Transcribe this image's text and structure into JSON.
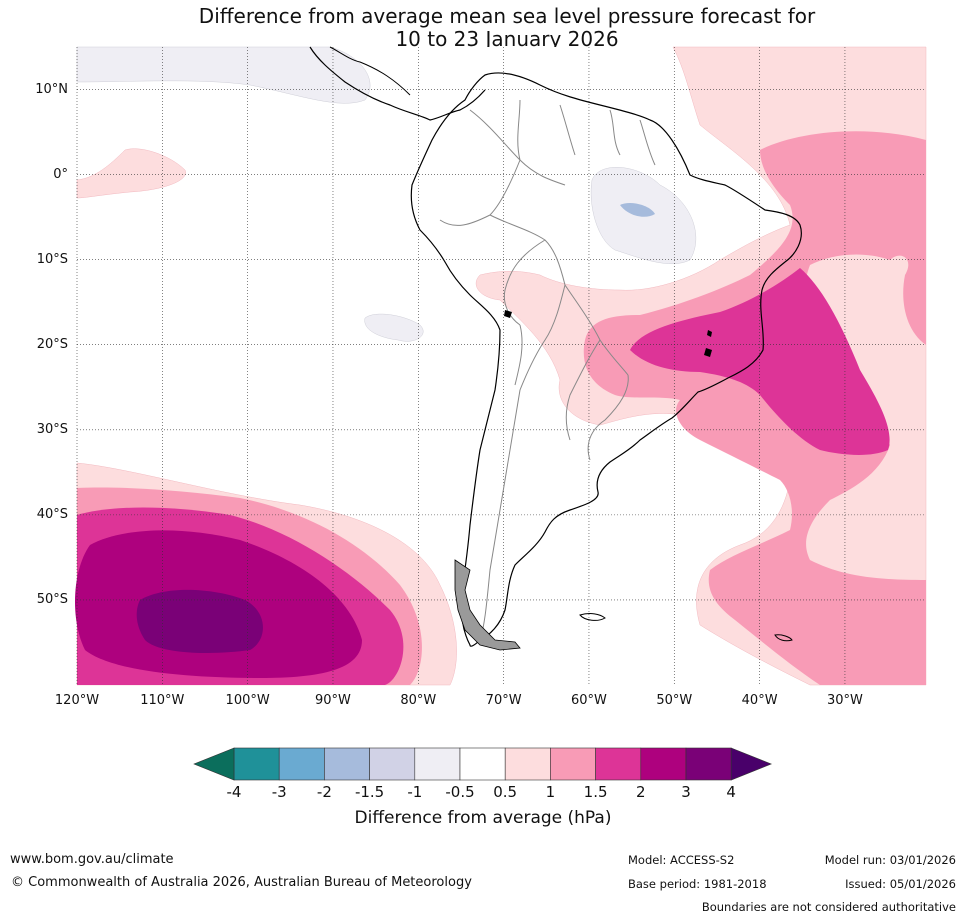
{
  "title": {
    "line1": "Difference from average mean sea level pressure forecast for",
    "line2": "10 to 23 January 2026"
  },
  "map": {
    "lat_labels": [
      "10°N",
      "0°",
      "10°S",
      "20°S",
      "30°S",
      "40°S",
      "50°S"
    ],
    "lon_labels": [
      "120°W",
      "110°W",
      "100°W",
      "90°W",
      "80°W",
      "70°W",
      "60°W",
      "50°W",
      "40°W",
      "30°W"
    ],
    "extent": {
      "lon_min": -120,
      "lon_max": -20.5,
      "lat_min": -60,
      "lat_max": 15
    }
  },
  "colorbar": {
    "title": "Difference from average (hPa)",
    "ticks": [
      "-4",
      "-3",
      "-2",
      "-1.5",
      "-1",
      "-0.5",
      "0.5",
      "1",
      "1.5",
      "2",
      "3",
      "4"
    ],
    "colors": {
      "below_min": "#0b6e5c",
      "m4_m3": "#1f9199",
      "m3_m2": "#6aaad1",
      "m2_m15": "#a6bbdc",
      "m15_m1": "#d1d2e6",
      "m1_m05": "#efeef4",
      "m05_05": "#ffffff",
      "p05_1": "#fdddde",
      "p1_15": "#f89bb6",
      "p15_2": "#dd3497",
      "p2_3": "#ae017e",
      "p3_4": "#7a0177",
      "above_max": "#49006a"
    }
  },
  "footer": {
    "url": "www.bom.gov.au/climate",
    "copyright": "© Commonwealth of Australia 2026, Australian Bureau of Meteorology",
    "model": "Model: ACCESS-S2",
    "base_period": "Base period: 1981-2018",
    "model_run": "Model run: 03/01/2026",
    "issued": "Issued: 05/01/2026",
    "disclaimer": "Boundaries are not considered authoritative"
  }
}
